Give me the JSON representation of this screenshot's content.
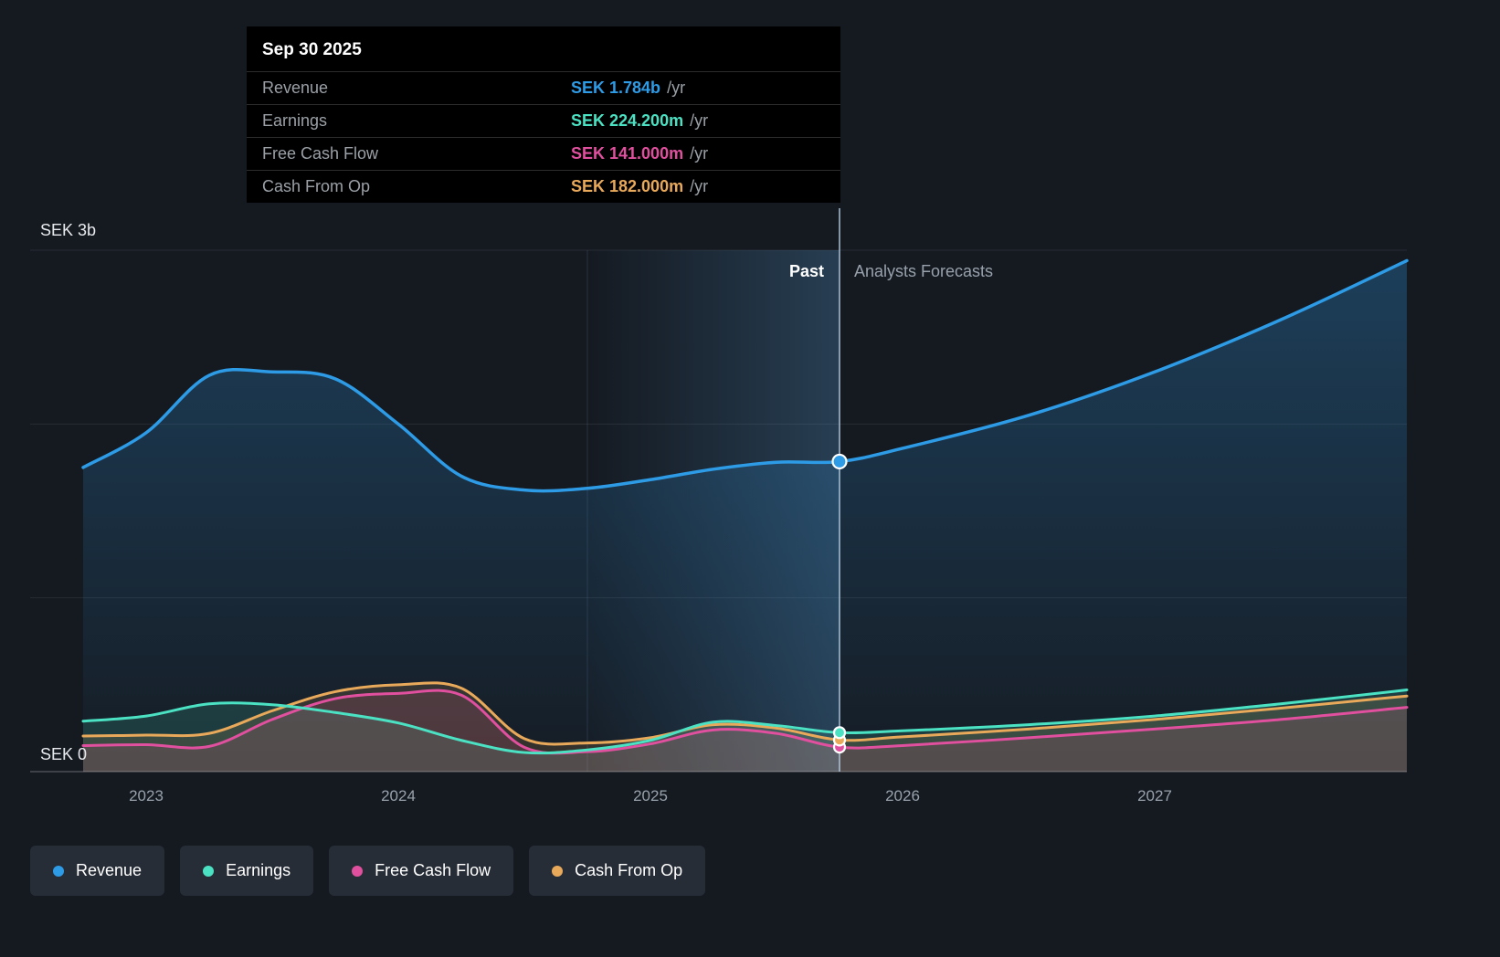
{
  "tooltip": {
    "date": "Sep 30 2025",
    "rows": [
      {
        "label": "Revenue",
        "value": "SEK 1.784b",
        "suffix": "/yr",
        "color": "#2e9be6"
      },
      {
        "label": "Earnings",
        "value": "SEK 224.200m",
        "suffix": "/yr",
        "color": "#4be1c3"
      },
      {
        "label": "Free Cash Flow",
        "value": "SEK 141.000m",
        "suffix": "/yr",
        "color": "#e0509e"
      },
      {
        "label": "Cash From Op",
        "value": "SEK 182.000m",
        "suffix": "/yr",
        "color": "#e9a95a"
      }
    ]
  },
  "axis": {
    "y_top_label": "SEK 3b",
    "y_zero_label": "SEK 0",
    "x_ticks": [
      "2023",
      "2024",
      "2025",
      "2026",
      "2027"
    ]
  },
  "divider": {
    "past_label": "Past",
    "forecast_label": "Analysts Forecasts"
  },
  "legend": [
    {
      "label": "Revenue",
      "color": "#2e9be6"
    },
    {
      "label": "Earnings",
      "color": "#4be1c3"
    },
    {
      "label": "Free Cash Flow",
      "color": "#e0509e"
    },
    {
      "label": "Cash From Op",
      "color": "#e9a95a"
    }
  ],
  "chart_data": {
    "type": "area",
    "ylabel": "SEK",
    "ylim_sek_billions": [
      0,
      3
    ],
    "x_years": [
      2022.75,
      2023.0,
      2023.25,
      2023.5,
      2023.75,
      2024.0,
      2024.25,
      2024.5,
      2024.75,
      2025.0,
      2025.25,
      2025.5,
      2025.75,
      2026.0,
      2026.5,
      2027.0,
      2027.5,
      2028.0
    ],
    "past_until_year": 2025.75,
    "x_tick_years": [
      2023,
      2024,
      2025,
      2026,
      2027
    ],
    "series": [
      {
        "name": "Revenue",
        "color": "#2e9be6",
        "unit": "SEK_billions",
        "values": [
          1.75,
          1.95,
          2.28,
          2.3,
          2.26,
          2.0,
          1.7,
          1.62,
          1.63,
          1.68,
          1.74,
          1.78,
          1.784,
          1.86,
          2.05,
          2.3,
          2.6,
          2.94
        ]
      },
      {
        "name": "Earnings",
        "color": "#4be1c3",
        "unit": "SEK_millions",
        "values": [
          290,
          320,
          390,
          385,
          340,
          280,
          180,
          110,
          125,
          180,
          285,
          265,
          224.2,
          235,
          270,
          320,
          390,
          470
        ]
      },
      {
        "name": "Free Cash Flow",
        "color": "#e0509e",
        "unit": "SEK_millions",
        "values": [
          150,
          155,
          145,
          300,
          420,
          450,
          440,
          140,
          115,
          160,
          240,
          220,
          141,
          150,
          195,
          245,
          300,
          370
        ]
      },
      {
        "name": "Cash From Op",
        "color": "#e9a95a",
        "unit": "SEK_millions",
        "values": [
          205,
          210,
          220,
          350,
          460,
          500,
          480,
          190,
          165,
          195,
          270,
          250,
          182,
          200,
          245,
          300,
          365,
          435
        ]
      }
    ],
    "values_at_divider": {
      "Revenue": "SEK 1.784b/yr",
      "Earnings": "SEK 224.200m/yr",
      "Free Cash Flow": "SEK 141.000m/yr",
      "Cash From Op": "SEK 182.000m/yr"
    }
  }
}
